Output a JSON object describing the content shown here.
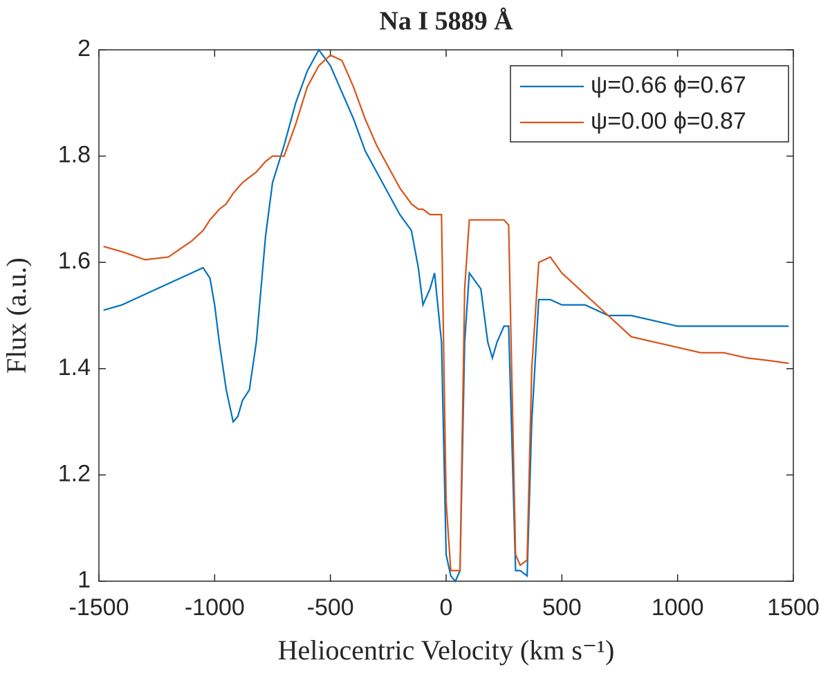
{
  "chart_data": {
    "type": "line",
    "title": "Na I 5889 Å",
    "x_label": "Heliocentric Velocity (km s⁻¹)",
    "y_label": "Flux (a.u.)",
    "x": [
      -1480,
      -1400,
      -1300,
      -1200,
      -1100,
      -1050,
      -1020,
      -1000,
      -980,
      -950,
      -920,
      -900,
      -880,
      -850,
      -820,
      -800,
      -780,
      -750,
      -700,
      -650,
      -600,
      -550,
      -500,
      -450,
      -400,
      -350,
      -300,
      -250,
      -200,
      -150,
      -120,
      -100,
      -70,
      -50,
      -20,
      0,
      20,
      40,
      60,
      80,
      100,
      150,
      180,
      200,
      220,
      250,
      270,
      300,
      320,
      350,
      370,
      400,
      450,
      500,
      600,
      700,
      800,
      900,
      1000,
      1100,
      1200,
      1300,
      1400,
      1480
    ],
    "series": [
      {
        "name": "ψ=0.66 ϕ=0.67",
        "color": "#0072bd",
        "values": [
          1.51,
          1.52,
          1.54,
          1.56,
          1.58,
          1.59,
          1.57,
          1.52,
          1.45,
          1.36,
          1.3,
          1.31,
          1.34,
          1.36,
          1.45,
          1.55,
          1.65,
          1.75,
          1.82,
          1.9,
          1.96,
          2.0,
          1.97,
          1.92,
          1.87,
          1.81,
          1.77,
          1.73,
          1.69,
          1.66,
          1.59,
          1.52,
          1.55,
          1.58,
          1.45,
          1.05,
          1.01,
          1.0,
          1.02,
          1.45,
          1.58,
          1.55,
          1.45,
          1.42,
          1.45,
          1.48,
          1.48,
          1.02,
          1.02,
          1.01,
          1.3,
          1.53,
          1.53,
          1.52,
          1.52,
          1.5,
          1.5,
          1.49,
          1.48,
          1.48,
          1.48,
          1.48,
          1.48,
          1.48
        ]
      },
      {
        "name": "ψ=0.00 ϕ=0.87",
        "color": "#d95319",
        "values": [
          1.63,
          1.62,
          1.605,
          1.61,
          1.64,
          1.66,
          1.68,
          1.69,
          1.7,
          1.71,
          1.73,
          1.74,
          1.75,
          1.76,
          1.77,
          1.78,
          1.79,
          1.8,
          1.8,
          1.86,
          1.93,
          1.97,
          1.99,
          1.98,
          1.93,
          1.87,
          1.82,
          1.78,
          1.74,
          1.71,
          1.7,
          1.7,
          1.69,
          1.69,
          1.69,
          1.15,
          1.02,
          1.02,
          1.02,
          1.55,
          1.68,
          1.68,
          1.68,
          1.68,
          1.68,
          1.68,
          1.67,
          1.05,
          1.03,
          1.04,
          1.4,
          1.6,
          1.61,
          1.58,
          1.54,
          1.5,
          1.46,
          1.45,
          1.44,
          1.43,
          1.43,
          1.42,
          1.415,
          1.41
        ]
      }
    ],
    "xlim": [
      -1500,
      1500
    ],
    "xticks": [
      -1500,
      -1000,
      -500,
      0,
      500,
      1000,
      1500
    ],
    "ylim": [
      1,
      2
    ],
    "yticks": [
      1,
      1.2,
      1.4,
      1.6,
      1.8,
      2
    ],
    "legend": "upper right"
  }
}
